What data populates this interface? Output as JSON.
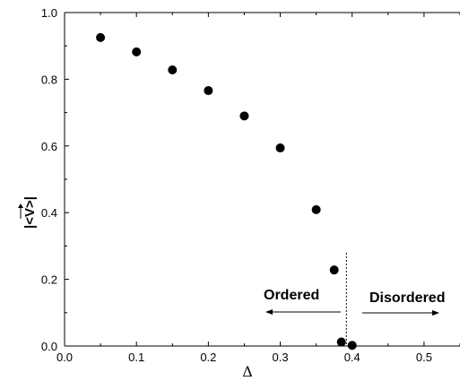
{
  "chart_data": {
    "type": "scatter",
    "xlabel": "Δ",
    "ylabel": "|<V>|",
    "xlim": [
      0.0,
      0.55
    ],
    "ylim": [
      0.0,
      1.0
    ],
    "xticks": [
      "0.0",
      "0.1",
      "0.2",
      "0.3",
      "0.4",
      "0.5"
    ],
    "yticks": [
      "0.0",
      "0.2",
      "0.4",
      "0.6",
      "0.8",
      "1.0"
    ],
    "grid": false,
    "series": [
      {
        "x": [
          0.05,
          0.1,
          0.15,
          0.2,
          0.25,
          0.3,
          0.35,
          0.375,
          0.385,
          0.4
        ],
        "y": [
          0.925,
          0.882,
          0.828,
          0.766,
          0.69,
          0.594,
          0.409,
          0.228,
          0.012,
          0.002
        ]
      }
    ],
    "transition_x": 0.392,
    "annotations": {
      "ordered": "Ordered",
      "disordered": "Disordered"
    }
  }
}
